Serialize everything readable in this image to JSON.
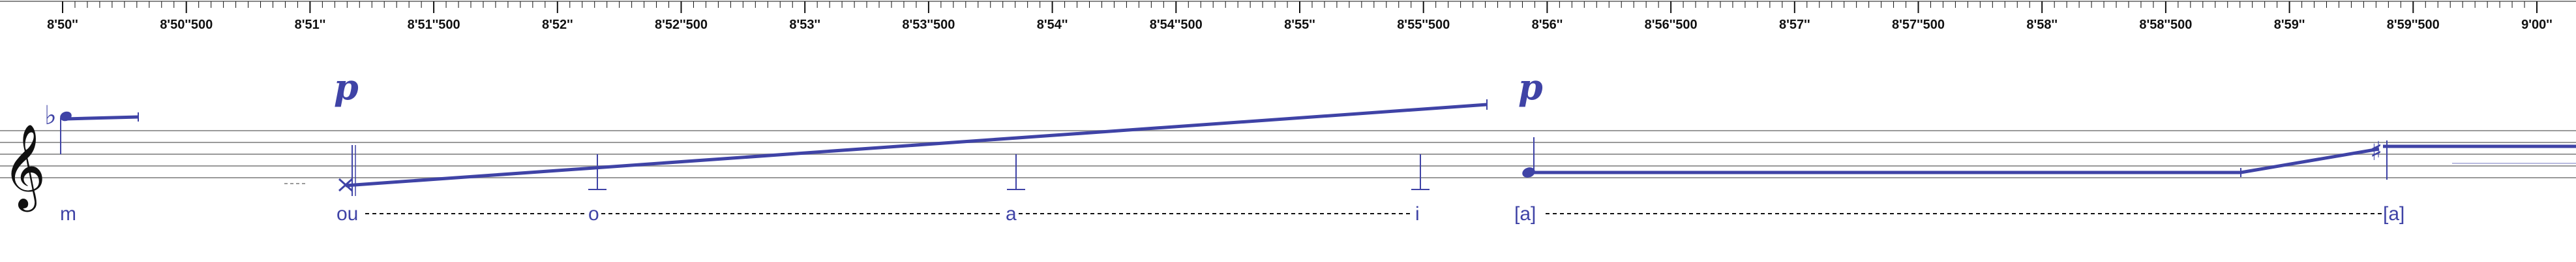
{
  "colors": {
    "ink": "#111111",
    "accent": "#3f43a6",
    "staff": "#9a9a9a"
  },
  "ruler": {
    "ticks": [
      "8'50''",
      "8'50''500",
      "8'51''",
      "8'51''500",
      "8'52''",
      "8'52''500",
      "8'53''",
      "8'53''500",
      "8'54''",
      "8'54''500",
      "8'55''",
      "8'55''500",
      "8'56''",
      "8'56''500",
      "8'57''",
      "8'57''500",
      "8'58''",
      "8'58''500",
      "8'59''",
      "8'59''500",
      "9'00''"
    ]
  },
  "dynamics": [
    "p",
    "p"
  ],
  "lyrics": [
    "m",
    "ou",
    "o",
    "a",
    "i",
    "[a]",
    "[a]"
  ],
  "icons": {
    "clef": "treble-clef-icon",
    "flat": "flat-icon",
    "sharp": "sharp-icon"
  },
  "glyphs": {
    "clef": "𝄞",
    "flat": "♭",
    "sharp": "♯"
  }
}
